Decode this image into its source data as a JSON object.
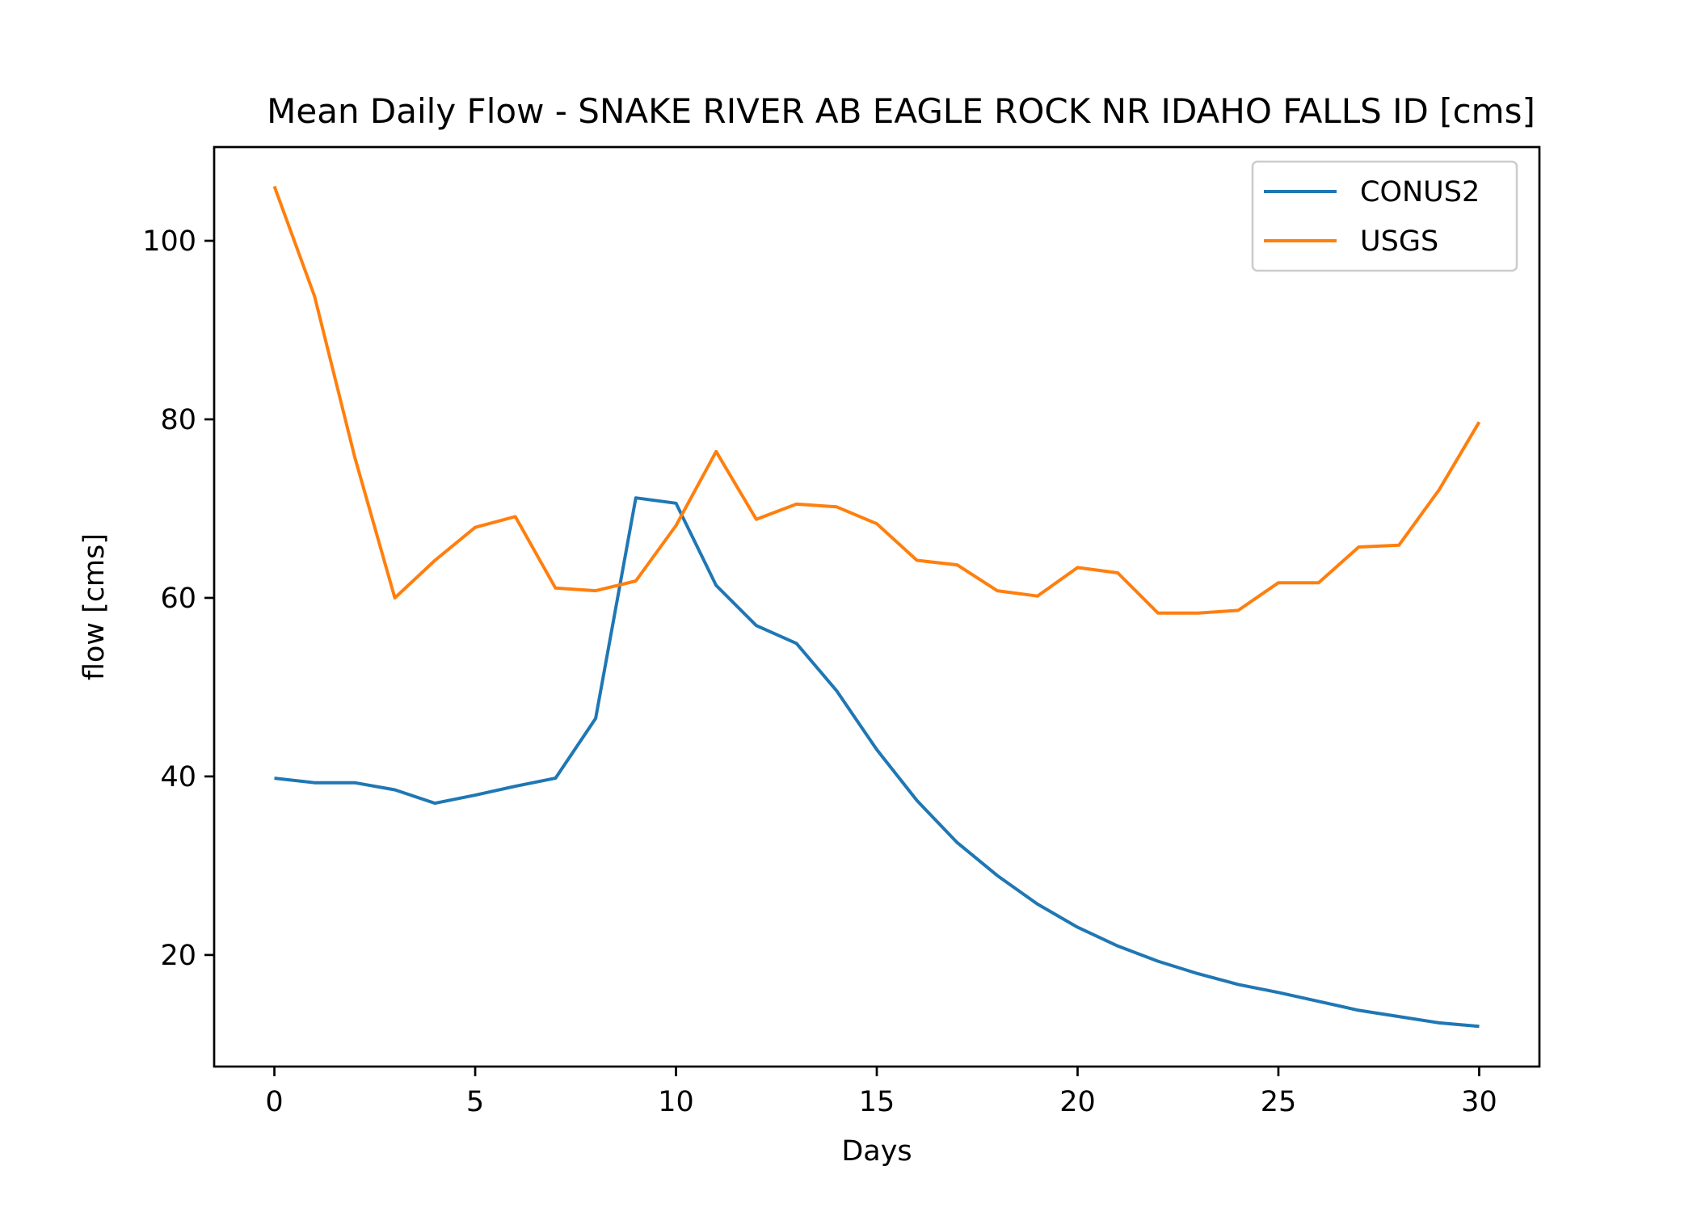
{
  "chart_data": {
    "type": "line",
    "title": "Mean Daily Flow - SNAKE RIVER AB EAGLE ROCK NR IDAHO FALLS ID [cms]",
    "xlabel": "Days",
    "ylabel": "flow [cms]",
    "xlim": [
      -1.5,
      31.5
    ],
    "ylim": [
      7.5,
      110.5
    ],
    "xticks": [
      0,
      5,
      10,
      15,
      20,
      25,
      30
    ],
    "yticks": [
      20,
      40,
      60,
      80,
      100
    ],
    "grid": false,
    "legend_position": "top-right",
    "x": [
      0,
      1,
      2,
      3,
      4,
      5,
      6,
      7,
      8,
      9,
      10,
      11,
      12,
      13,
      14,
      15,
      16,
      17,
      18,
      19,
      20,
      21,
      22,
      23,
      24,
      25,
      26,
      27,
      28,
      29,
      30
    ],
    "series": [
      {
        "name": "CONUS2",
        "color": "#1f77b4",
        "values": [
          39.8,
          39.3,
          39.3,
          38.5,
          37.0,
          37.9,
          38.9,
          39.8,
          46.5,
          71.2,
          70.6,
          61.4,
          56.9,
          54.9,
          49.6,
          43.0,
          37.3,
          32.6,
          28.9,
          25.7,
          23.1,
          21.0,
          19.3,
          17.9,
          16.7,
          15.8,
          14.8,
          13.8,
          13.1,
          12.4,
          12.0
        ]
      },
      {
        "name": "USGS",
        "color": "#ff7f0e",
        "values": [
          106.1,
          93.8,
          75.8,
          60.0,
          64.2,
          67.9,
          69.1,
          61.1,
          60.8,
          61.9,
          68.1,
          76.4,
          68.8,
          70.5,
          70.2,
          68.3,
          64.2,
          63.7,
          60.8,
          60.2,
          63.4,
          62.8,
          58.3,
          58.3,
          58.6,
          61.7,
          61.7,
          65.7,
          65.9,
          72.1,
          79.7
        ]
      }
    ]
  }
}
